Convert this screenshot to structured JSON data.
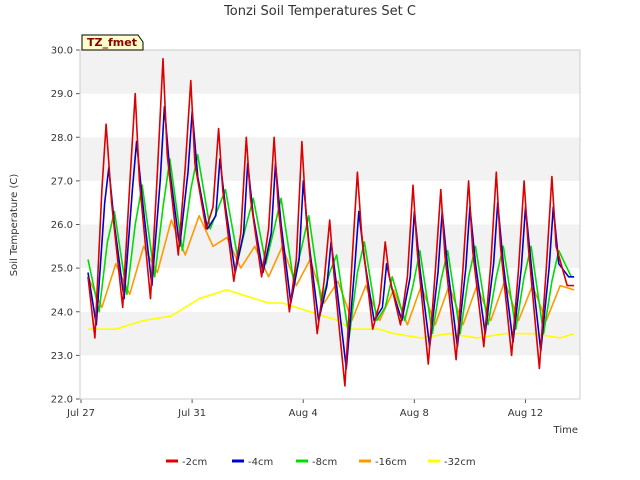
{
  "chart_data": {
    "type": "line",
    "title": "Tonzi Soil Temperatures Set C",
    "xlabel": "Time",
    "ylabel": "Soil Temperature (C)",
    "site_label": "TZ_fmet",
    "x_range_days": [
      0,
      18.0
    ],
    "x_ticks": [
      {
        "label": "Jul 27",
        "day": 0
      },
      {
        "label": "Jul 31",
        "day": 4
      },
      {
        "label": "Aug 4",
        "day": 8
      },
      {
        "label": "Aug 8",
        "day": 12
      },
      {
        "label": "Aug 12",
        "day": 16
      }
    ],
    "ylim": [
      22.0,
      30.0
    ],
    "y_ticks": [
      "22.0",
      "23.0",
      "24.0",
      "25.0",
      "26.0",
      "27.0",
      "28.0",
      "29.0",
      "30.0"
    ],
    "grid": "horizontal bands",
    "legend_position": "bottom",
    "colors": {
      "-2cm": "#dd0000",
      "-4cm": "#0000cc",
      "-8cm": "#00dd00",
      "-16cm": "#ff9900",
      "-32cm": "#ffff00"
    },
    "series": [
      {
        "name": "-2cm",
        "days": [
          0,
          0.25,
          0.5,
          0.65,
          0.85,
          1.25,
          1.5,
          1.7,
          1.85,
          2.25,
          2.5,
          2.7,
          2.85,
          3.25,
          3.5,
          3.7,
          3.85,
          4.25,
          4.5,
          4.7,
          4.85,
          5.25,
          5.5,
          5.7,
          5.85,
          6.25,
          6.5,
          6.7,
          6.85,
          7.25,
          7.5,
          7.7,
          7.85,
          8.25,
          8.5,
          8.7,
          8.85,
          9.25,
          9.5,
          9.7,
          9.85,
          10.25,
          10.5,
          10.7,
          10.85,
          11.25,
          11.5,
          11.7,
          11.85,
          12.25,
          12.5,
          12.7,
          12.85,
          13.25,
          13.5,
          13.7,
          13.85,
          14.25,
          14.5,
          14.7,
          14.85,
          15.25,
          15.5,
          15.7,
          15.85,
          16.25,
          16.5,
          16.7,
          16.85,
          17.25,
          17.5
        ],
        "values": [
          24.8,
          23.4,
          26.8,
          28.3,
          26.5,
          24.1,
          26.9,
          29.0,
          27.0,
          24.3,
          27.2,
          29.8,
          27.6,
          25.3,
          27.3,
          29.3,
          27.4,
          25.9,
          26.4,
          28.2,
          26.8,
          24.7,
          25.8,
          28.0,
          26.6,
          24.8,
          25.9,
          28.0,
          26.4,
          24.0,
          25.2,
          27.9,
          26.2,
          23.5,
          24.7,
          26.1,
          24.9,
          22.3,
          25.1,
          27.2,
          25.8,
          23.6,
          24.2,
          25.6,
          24.8,
          23.7,
          24.8,
          26.9,
          25.4,
          22.8,
          24.9,
          26.8,
          25.3,
          22.9,
          25.0,
          27.0,
          25.4,
          23.2,
          25.1,
          27.2,
          25.5,
          23.0,
          25.0,
          27.0,
          25.5,
          22.7,
          25.0,
          27.1,
          25.5,
          24.6,
          24.6
        ]
      },
      {
        "name": "-4cm",
        "days": [
          0,
          0.3,
          0.6,
          0.75,
          0.95,
          1.3,
          1.6,
          1.75,
          1.95,
          2.3,
          2.6,
          2.75,
          2.95,
          3.3,
          3.6,
          3.75,
          3.95,
          4.3,
          4.6,
          4.75,
          4.95,
          5.3,
          5.6,
          5.75,
          5.95,
          6.3,
          6.6,
          6.75,
          6.95,
          7.3,
          7.6,
          7.75,
          7.95,
          8.3,
          8.6,
          8.75,
          8.95,
          9.3,
          9.6,
          9.75,
          9.95,
          10.3,
          10.6,
          10.75,
          10.95,
          11.3,
          11.6,
          11.75,
          11.95,
          12.3,
          12.6,
          12.75,
          12.95,
          13.3,
          13.6,
          13.75,
          13.95,
          14.3,
          14.6,
          14.75,
          14.95,
          15.3,
          15.6,
          15.75,
          15.95,
          16.3,
          16.6,
          16.75,
          16.95,
          17.3,
          17.5
        ],
        "values": [
          24.9,
          23.7,
          26.5,
          27.3,
          26.0,
          24.3,
          26.8,
          27.9,
          26.6,
          24.6,
          27.0,
          28.7,
          27.2,
          25.5,
          27.2,
          28.6,
          27.1,
          25.9,
          26.2,
          27.5,
          26.4,
          24.9,
          25.8,
          27.4,
          26.2,
          24.9,
          25.8,
          27.4,
          26.0,
          24.2,
          25.2,
          27.0,
          25.6,
          23.8,
          24.6,
          25.6,
          24.6,
          22.7,
          25.0,
          26.3,
          25.2,
          23.8,
          24.1,
          25.1,
          24.5,
          23.8,
          24.8,
          26.3,
          25.0,
          23.2,
          24.9,
          26.3,
          25.0,
          23.2,
          25.0,
          26.4,
          25.1,
          23.5,
          25.1,
          26.5,
          25.1,
          23.3,
          25.0,
          26.4,
          25.1,
          23.1,
          25.0,
          26.4,
          25.1,
          24.8,
          24.8
        ]
      },
      {
        "name": "-8cm",
        "days": [
          0,
          0.4,
          0.7,
          0.95,
          1.4,
          1.7,
          1.95,
          2.4,
          2.7,
          2.95,
          3.4,
          3.7,
          3.95,
          4.4,
          4.7,
          4.95,
          5.4,
          5.7,
          5.95,
          6.4,
          6.7,
          6.95,
          7.4,
          7.7,
          7.95,
          8.4,
          8.7,
          8.95,
          9.4,
          9.7,
          9.95,
          10.4,
          10.7,
          10.95,
          11.4,
          11.7,
          11.95,
          12.4,
          12.7,
          12.95,
          13.4,
          13.7,
          13.95,
          14.4,
          14.7,
          14.95,
          15.4,
          15.7,
          15.95,
          16.4,
          16.7,
          16.95,
          17.4,
          17.5
        ],
        "values": [
          25.2,
          24.0,
          25.6,
          26.3,
          24.4,
          26.0,
          26.9,
          24.8,
          26.4,
          27.5,
          25.4,
          26.8,
          27.6,
          25.9,
          26.4,
          26.8,
          25.2,
          26.0,
          26.6,
          25.1,
          25.9,
          26.6,
          24.7,
          25.5,
          26.2,
          24.2,
          24.9,
          25.3,
          23.4,
          24.9,
          25.6,
          23.8,
          24.1,
          24.8,
          23.8,
          24.6,
          25.4,
          23.5,
          24.7,
          25.4,
          23.5,
          24.8,
          25.5,
          23.7,
          24.8,
          25.5,
          23.6,
          24.8,
          25.5,
          23.5,
          24.7,
          25.4,
          24.8,
          24.8
        ]
      },
      {
        "name": "-16cm",
        "days": [
          0,
          0.5,
          1.0,
          1.5,
          2.0,
          2.5,
          3.0,
          3.5,
          4.0,
          4.5,
          5.0,
          5.5,
          6.0,
          6.5,
          7.0,
          7.5,
          8.0,
          8.5,
          9.0,
          9.5,
          10.0,
          10.5,
          11.0,
          11.5,
          12.0,
          12.5,
          13.0,
          13.5,
          14.0,
          14.5,
          15.0,
          15.5,
          16.0,
          16.5,
          17.0,
          17.5
        ],
        "values": [
          24.8,
          24.1,
          25.1,
          24.4,
          25.5,
          24.9,
          26.1,
          25.3,
          26.2,
          25.5,
          25.7,
          25.0,
          25.5,
          24.8,
          25.5,
          24.6,
          25.2,
          24.2,
          24.7,
          23.8,
          24.6,
          23.8,
          24.5,
          23.7,
          24.6,
          23.7,
          24.6,
          23.7,
          24.6,
          23.8,
          24.7,
          23.8,
          24.6,
          23.8,
          24.6,
          24.5
        ]
      },
      {
        "name": "-32cm",
        "days": [
          0,
          1,
          2,
          3,
          3.5,
          4,
          4.5,
          5,
          5.5,
          6,
          6.5,
          7,
          7.5,
          8,
          8.5,
          9,
          9.5,
          10,
          10.5,
          11,
          12,
          13,
          14,
          15,
          16,
          17,
          17.5
        ],
        "values": [
          23.6,
          23.6,
          23.8,
          23.9,
          24.1,
          24.3,
          24.4,
          24.5,
          24.4,
          24.3,
          24.2,
          24.2,
          24.1,
          24.0,
          23.9,
          23.8,
          23.6,
          23.6,
          23.6,
          23.5,
          23.4,
          23.5,
          23.4,
          23.5,
          23.5,
          23.4,
          23.5
        ]
      }
    ]
  }
}
